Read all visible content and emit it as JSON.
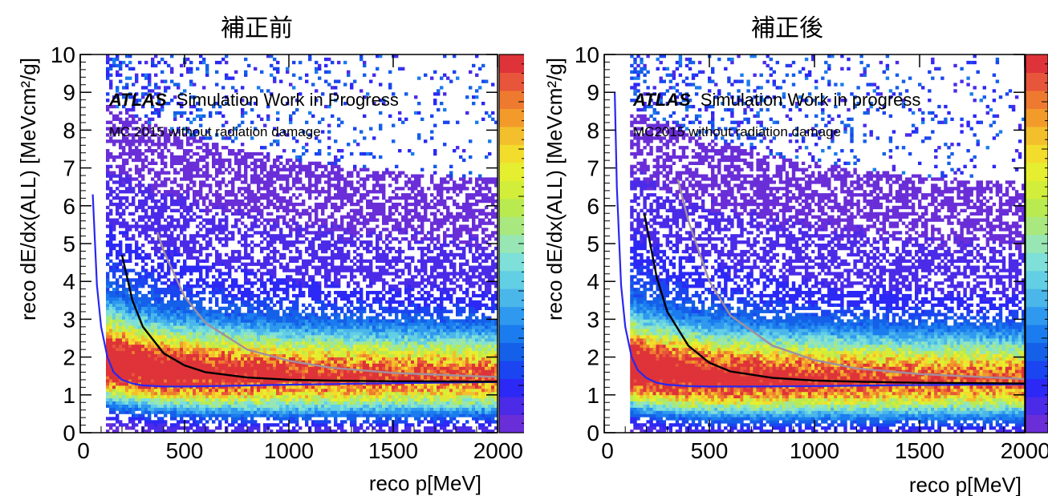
{
  "page": {
    "background": "#ffffff"
  },
  "colors": {
    "palette": [
      "#6a2ed8",
      "#4b2be8",
      "#2c28f5",
      "#1a45f0",
      "#1560e8",
      "#1a7cee",
      "#2f98ef",
      "#4bb6ea",
      "#62cfe4",
      "#7ee0d8",
      "#97e6b4",
      "#a9e87e",
      "#b9ea50",
      "#d2ee3a",
      "#e6ef2f",
      "#f3dd2c",
      "#f4bf2c",
      "#f29b2b",
      "#ee7a30",
      "#e7553a",
      "#de3338"
    ],
    "curve_blue": "#2828f0",
    "curve_black": "#000000",
    "curve_gray": "#a28e9e"
  },
  "panels": [
    {
      "title": "補正前",
      "xlabel": "reco p[MeV]",
      "ylabel": "reco dE/dx(ALL) [MeVcm²/g]",
      "annotation_brand": "ATLAS",
      "annotation_text": "Simulation Work in Progress",
      "annotation_sub": "MC 2015 without radiation damage"
    },
    {
      "title": "補正後",
      "xlabel": "reco p[MeV]",
      "ylabel": "reco dE/dx(ALL) [MeVcm²/g]",
      "annotation_brand": "ATLAS",
      "annotation_text": "Simulation Work in progress",
      "annotation_sub": "MC2015 without radiation damage"
    }
  ],
  "chart_data": [
    {
      "type": "heatmap",
      "title": "補正前",
      "xlabel": "reco p[MeV]",
      "ylabel": "reco dE/dx(ALL) [MeVcm²/g]",
      "xlim": [
        0,
        2000
      ],
      "ylim": [
        0,
        10
      ],
      "x_ticks": [
        0,
        500,
        1000,
        1500,
        2000
      ],
      "y_ticks": [
        0,
        1,
        2,
        3,
        4,
        5,
        6,
        7,
        8,
        9,
        10
      ],
      "colorbar": true,
      "grid": false,
      "density_band": {
        "x_min": 130,
        "peak_dedx_low_p": 1.7,
        "peak_dedx_high_p": 1.35
      },
      "series": [
        {
          "color": "blue",
          "x": [
            60,
            80,
            100,
            130,
            160,
            200,
            250,
            300,
            400,
            500,
            700,
            1000,
            1500,
            2000
          ],
          "y": [
            6.3,
            3.9,
            2.8,
            2.0,
            1.6,
            1.4,
            1.3,
            1.25,
            1.22,
            1.22,
            1.24,
            1.27,
            1.31,
            1.34
          ]
        },
        {
          "color": "black",
          "x": [
            200,
            250,
            300,
            400,
            500,
            600,
            800,
            1000,
            1200,
            1500,
            2000
          ],
          "y": [
            4.7,
            3.5,
            2.8,
            2.1,
            1.78,
            1.6,
            1.46,
            1.4,
            1.38,
            1.36,
            1.35
          ]
        },
        {
          "color": "gray",
          "x": [
            370,
            400,
            500,
            600,
            800,
            1000,
            1200,
            1500,
            2000
          ],
          "y": [
            5.3,
            4.8,
            3.6,
            2.9,
            2.2,
            1.9,
            1.72,
            1.58,
            1.47
          ]
        }
      ]
    },
    {
      "type": "heatmap",
      "title": "補正後",
      "xlabel": "reco p[MeV]",
      "ylabel": "reco dE/dx(ALL) [MeVcm²/g]",
      "xlim": [
        0,
        2000
      ],
      "ylim": [
        0,
        10
      ],
      "x_ticks": [
        0,
        500,
        1000,
        1500,
        2000
      ],
      "y_ticks": [
        0,
        1,
        2,
        3,
        4,
        5,
        6,
        7,
        8,
        9,
        10
      ],
      "colorbar": true,
      "grid": false,
      "density_band": {
        "x_min": 120,
        "peak_dedx_low_p": 1.55,
        "peak_dedx_high_p": 1.25
      },
      "series": [
        {
          "color": "blue",
          "x": [
            50,
            60,
            80,
            100,
            130,
            160,
            200,
            250,
            300,
            400,
            500,
            700,
            1000,
            1500,
            2000
          ],
          "y": [
            9.0,
            6.5,
            3.9,
            2.8,
            2.0,
            1.65,
            1.45,
            1.32,
            1.27,
            1.23,
            1.22,
            1.22,
            1.23,
            1.26,
            1.28
          ]
        },
        {
          "color": "black",
          "x": [
            190,
            250,
            300,
            400,
            500,
            600,
            800,
            1000,
            1200,
            1500,
            2000
          ],
          "y": [
            5.8,
            4.1,
            3.2,
            2.3,
            1.85,
            1.62,
            1.45,
            1.38,
            1.35,
            1.32,
            1.3
          ]
        },
        {
          "color": "gray",
          "x": [
            350,
            400,
            500,
            600,
            800,
            1000,
            1200,
            1500,
            2000
          ],
          "y": [
            6.7,
            5.6,
            4.0,
            3.1,
            2.3,
            1.92,
            1.7,
            1.55,
            1.42
          ]
        }
      ]
    }
  ]
}
